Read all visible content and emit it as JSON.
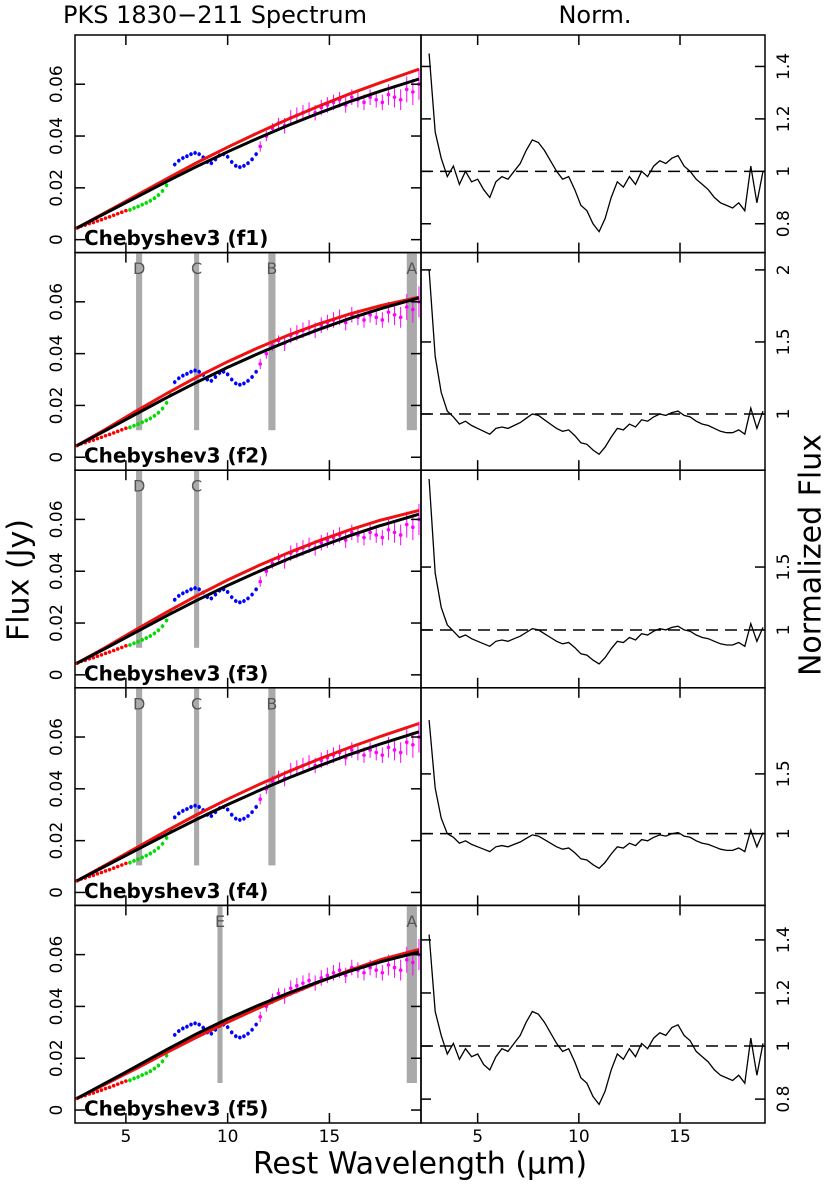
{
  "chart_data": {
    "type": "spectrum-panels",
    "title": "PKS 1830−211 Spectrum",
    "title_right": "Norm.",
    "ylabel": "Flux (Jy)",
    "y2label": "Normalized Flux",
    "xlabel": "Rest Wavelength (μm)",
    "xlim": [
      2.5,
      19.5
    ],
    "x2lim": [
      2.2,
      19.2
    ],
    "xticks": [
      5,
      10,
      15
    ],
    "ylim": [
      -0.005,
      0.079
    ],
    "yticks": [
      0,
      0.02,
      0.04,
      0.06
    ],
    "spectrum": [
      {
        "color": "#ff0000",
        "x": [
          2.6,
          2.8,
          3.0,
          3.2,
          3.4,
          3.6,
          3.8,
          4.0,
          4.2,
          4.4,
          4.6,
          4.8,
          5.0
        ],
        "values": [
          0.0045,
          0.0052,
          0.0056,
          0.0062,
          0.0066,
          0.0072,
          0.0077,
          0.0083,
          0.0088,
          0.0094,
          0.01,
          0.0106,
          0.0112
        ],
        "errors": [
          0.0006,
          0.0006,
          0.0006,
          0.0006,
          0.0006,
          0.0006,
          0.0006,
          0.0006,
          0.0006,
          0.0006,
          0.0006,
          0.0006,
          0.0006
        ]
      },
      {
        "color": "#00dd00",
        "x": [
          5.2,
          5.4,
          5.6,
          5.8,
          6.0,
          6.2,
          6.4,
          6.6,
          6.8,
          7.0,
          7.2
        ],
        "values": [
          0.0115,
          0.0122,
          0.0128,
          0.0135,
          0.0142,
          0.015,
          0.016,
          0.0172,
          0.0188,
          0.021,
          0.024
        ],
        "errors": [
          0.0008,
          0.0008,
          0.0008,
          0.0008,
          0.0008,
          0.0008,
          0.0008,
          0.0008,
          0.0008,
          0.0008,
          0.0008
        ]
      },
      {
        "color": "#0000ff",
        "x": [
          7.4,
          7.6,
          7.8,
          8.0,
          8.2,
          8.4,
          8.6,
          8.8,
          9.0,
          9.2,
          9.4,
          9.6,
          9.8,
          10.0,
          10.2,
          10.4,
          10.6,
          10.8,
          11.0,
          11.2,
          11.4
        ],
        "values": [
          0.029,
          0.0305,
          0.0315,
          0.0322,
          0.033,
          0.0335,
          0.033,
          0.0318,
          0.03,
          0.0295,
          0.031,
          0.0325,
          0.033,
          0.032,
          0.03,
          0.0285,
          0.028,
          0.0285,
          0.0295,
          0.031,
          0.033
        ],
        "errors": [
          0.0008,
          0.0008,
          0.0008,
          0.0008,
          0.0008,
          0.0008,
          0.0008,
          0.0008,
          0.0008,
          0.0008,
          0.0008,
          0.0008,
          0.0008,
          0.0008,
          0.0008,
          0.0008,
          0.0008,
          0.0008,
          0.0008,
          0.0008,
          0.0008
        ]
      },
      {
        "color": "#ff00ff",
        "x": [
          11.6,
          11.9,
          12.2,
          12.5,
          12.8,
          13.1,
          13.4,
          13.7,
          14.0,
          14.3,
          14.6,
          14.9,
          15.2,
          15.5,
          15.8,
          16.1,
          16.4,
          16.7,
          17.0,
          17.3,
          17.6,
          17.9,
          18.2,
          18.5,
          18.8,
          19.1,
          19.4
        ],
        "values": [
          0.036,
          0.04,
          0.043,
          0.045,
          0.044,
          0.047,
          0.048,
          0.049,
          0.05,
          0.049,
          0.051,
          0.052,
          0.053,
          0.054,
          0.052,
          0.055,
          0.054,
          0.053,
          0.055,
          0.054,
          0.053,
          0.056,
          0.055,
          0.054,
          0.058,
          0.057,
          0.06
        ],
        "errors": [
          0.002,
          0.002,
          0.002,
          0.002,
          0.003,
          0.003,
          0.003,
          0.003,
          0.003,
          0.003,
          0.003,
          0.003,
          0.003,
          0.003,
          0.003,
          0.003,
          0.003,
          0.003,
          0.003,
          0.003,
          0.003,
          0.004,
          0.004,
          0.004,
          0.005,
          0.005,
          0.006
        ]
      }
    ],
    "fit_x": [
      2.6,
      4,
      5.5,
      7,
      8.5,
      10,
      11.5,
      13,
      14.5,
      16,
      17.5,
      19.4
    ],
    "norm_x": [
      2.6,
      2.9,
      3.2,
      3.5,
      3.8,
      4.1,
      4.4,
      4.7,
      5.0,
      5.3,
      5.6,
      5.9,
      6.2,
      6.5,
      6.8,
      7.1,
      7.4,
      7.7,
      8.0,
      8.3,
      8.6,
      8.9,
      9.2,
      9.5,
      9.8,
      10.1,
      10.4,
      10.7,
      11.0,
      11.3,
      11.6,
      11.9,
      12.2,
      12.5,
      12.8,
      13.1,
      13.4,
      13.7,
      14.0,
      14.3,
      14.6,
      14.9,
      15.2,
      15.5,
      15.8,
      16.1,
      16.4,
      16.7,
      17.0,
      17.3,
      17.6,
      17.9,
      18.2,
      18.5,
      18.8,
      19.1
    ],
    "rows": [
      {
        "label": "Chebyshev3 (f1)",
        "bands": [],
        "fits": [
          {
            "color": "#ee1111",
            "values": [
              0.0045,
              0.0105,
              0.017,
              0.0235,
              0.0298,
              0.0357,
              0.0413,
              0.0466,
              0.0516,
              0.0563,
              0.0606,
              0.0658
            ]
          },
          {
            "color": "#000000",
            "values": [
              0.0045,
              0.0102,
              0.0163,
              0.0224,
              0.0283,
              0.0339,
              0.0392,
              0.0442,
              0.0489,
              0.0533,
              0.0573,
              0.062
            ]
          }
        ],
        "norm": {
          "ylim": [
            0.69,
            1.52
          ],
          "yticks": [
            0.8,
            1,
            1.2,
            1.4
          ],
          "reference": 1,
          "values": [
            1.45,
            1.15,
            1.05,
            0.98,
            1.02,
            0.95,
            1.0,
            0.96,
            0.97,
            0.93,
            0.9,
            0.96,
            0.98,
            0.97,
            1.0,
            1.03,
            1.08,
            1.12,
            1.11,
            1.08,
            1.04,
            1.0,
            0.97,
            0.98,
            0.93,
            0.87,
            0.85,
            0.8,
            0.77,
            0.82,
            0.9,
            0.96,
            0.94,
            0.98,
            0.95,
            1.0,
            0.98,
            1.02,
            1.04,
            1.03,
            1.05,
            1.06,
            1.02,
            1.0,
            0.97,
            0.95,
            0.93,
            0.9,
            0.88,
            0.87,
            0.86,
            0.88,
            0.85,
            1.02,
            0.88,
            1.0
          ]
        }
      },
      {
        "label": "Chebyshev3 (f2)",
        "bands": [
          {
            "label": "D",
            "xmin": 5.5,
            "xmax": 5.8
          },
          {
            "label": "C",
            "xmin": 8.35,
            "xmax": 8.6
          },
          {
            "label": "B",
            "xmin": 12.0,
            "xmax": 12.35
          },
          {
            "label": "A",
            "xmin": 18.8,
            "xmax": 19.3
          }
        ],
        "fits": [
          {
            "color": "#ee1111",
            "values": [
              0.0045,
              0.0108,
              0.0178,
              0.0246,
              0.031,
              0.0369,
              0.0423,
              0.0472,
              0.0515,
              0.0553,
              0.0585,
              0.0618
            ]
          },
          {
            "color": "#000000",
            "values": [
              0.0045,
              0.0103,
              0.0167,
              0.023,
              0.029,
              0.0347,
              0.04,
              0.0449,
              0.0494,
              0.0536,
              0.0573,
              0.0615
            ]
          }
        ],
        "norm": {
          "ylim": [
            0.61,
            2.12
          ],
          "yticks": [
            1,
            1.5,
            2
          ],
          "reference": 1,
          "values": [
            2.0,
            1.4,
            1.15,
            1.02,
            0.98,
            0.93,
            0.95,
            0.92,
            0.9,
            0.88,
            0.86,
            0.9,
            0.91,
            0.9,
            0.92,
            0.94,
            0.97,
            1.0,
            0.99,
            0.96,
            0.93,
            0.9,
            0.88,
            0.89,
            0.85,
            0.8,
            0.79,
            0.75,
            0.72,
            0.77,
            0.84,
            0.9,
            0.89,
            0.93,
            0.91,
            0.96,
            0.95,
            0.98,
            1.0,
            0.99,
            1.01,
            1.02,
            0.99,
            0.98,
            0.95,
            0.93,
            0.92,
            0.9,
            0.88,
            0.87,
            0.87,
            0.89,
            0.86,
            1.04,
            0.9,
            1.02
          ]
        }
      },
      {
        "label": "Chebyshev3 (f3)",
        "bands": [
          {
            "label": "D",
            "xmin": 5.5,
            "xmax": 5.8
          },
          {
            "label": "C",
            "xmin": 8.35,
            "xmax": 8.6
          }
        ],
        "fits": [
          {
            "color": "#ee1111",
            "values": [
              0.0045,
              0.0106,
              0.0175,
              0.0242,
              0.0306,
              0.0366,
              0.0421,
              0.0472,
              0.0518,
              0.056,
              0.0597,
              0.0635
            ]
          },
          {
            "color": "#000000",
            "values": [
              0.0045,
              0.0102,
              0.0165,
              0.0228,
              0.0288,
              0.0345,
              0.0398,
              0.0448,
              0.0494,
              0.0537,
              0.0576,
              0.062
            ]
          }
        ],
        "norm": {
          "ylim": [
            0.54,
            2.27
          ],
          "yticks": [
            1,
            1.5
          ],
          "reference": 1,
          "values": [
            2.2,
            1.45,
            1.18,
            1.04,
            0.99,
            0.94,
            0.96,
            0.93,
            0.91,
            0.89,
            0.87,
            0.91,
            0.92,
            0.91,
            0.93,
            0.95,
            0.98,
            1.01,
            1.0,
            0.97,
            0.94,
            0.91,
            0.89,
            0.9,
            0.86,
            0.81,
            0.8,
            0.76,
            0.73,
            0.78,
            0.85,
            0.91,
            0.9,
            0.94,
            0.92,
            0.97,
            0.96,
            0.99,
            1.01,
            1.0,
            1.02,
            1.03,
            1.0,
            0.99,
            0.96,
            0.94,
            0.93,
            0.91,
            0.89,
            0.88,
            0.88,
            0.9,
            0.87,
            1.05,
            0.91,
            1.02
          ]
        }
      },
      {
        "label": "Chebyshev3 (f4)",
        "bands": [
          {
            "label": "D",
            "xmin": 5.5,
            "xmax": 5.8
          },
          {
            "label": "C",
            "xmin": 8.35,
            "xmax": 8.6
          },
          {
            "label": "B",
            "xmin": 12.0,
            "xmax": 12.35
          }
        ],
        "fits": [
          {
            "color": "#ee1111",
            "values": [
              0.0045,
              0.0106,
              0.0172,
              0.0238,
              0.0301,
              0.036,
              0.0415,
              0.0467,
              0.0515,
              0.056,
              0.0602,
              0.0652
            ]
          },
          {
            "color": "#000000",
            "values": [
              0.0045,
              0.0102,
              0.0163,
              0.0224,
              0.0283,
              0.0339,
              0.0392,
              0.0442,
              0.0489,
              0.0533,
              0.0573,
              0.062
            ]
          }
        ],
        "norm": {
          "ylim": [
            0.4,
            2.22
          ],
          "yticks": [
            1,
            1.5
          ],
          "reference": 1,
          "values": [
            1.95,
            1.38,
            1.13,
            1.0,
            0.97,
            0.92,
            0.94,
            0.91,
            0.89,
            0.87,
            0.85,
            0.89,
            0.9,
            0.89,
            0.91,
            0.93,
            0.96,
            0.99,
            0.98,
            0.95,
            0.92,
            0.89,
            0.87,
            0.88,
            0.84,
            0.79,
            0.78,
            0.74,
            0.71,
            0.76,
            0.83,
            0.89,
            0.88,
            0.92,
            0.9,
            0.95,
            0.94,
            0.97,
            0.99,
            0.98,
            1.0,
            1.01,
            0.98,
            0.97,
            0.94,
            0.92,
            0.91,
            0.89,
            0.87,
            0.86,
            0.86,
            0.88,
            0.85,
            1.03,
            0.89,
            1.01
          ]
        }
      },
      {
        "label": "Chebyshev3 (f5)",
        "bands": [
          {
            "label": "E",
            "xmin": 9.5,
            "xmax": 9.75
          },
          {
            "label": "A",
            "xmin": 18.8,
            "xmax": 19.3
          }
        ],
        "fits": [
          {
            "color": "#ee1111",
            "values": [
              0.0045,
              0.01,
              0.016,
              0.0222,
              0.0282,
              0.0339,
              0.0393,
              0.0445,
              0.0494,
              0.054,
              0.058,
              0.062
            ]
          },
          {
            "color": "#000000",
            "values": [
              0.0045,
              0.0104,
              0.0168,
              0.0233,
              0.0295,
              0.0352,
              0.0404,
              0.0452,
              0.0496,
              0.0536,
              0.0572,
              0.061
            ]
          }
        ],
        "norm": {
          "ylim": [
            0.71,
            1.53
          ],
          "yticks": [
            0.8,
            1,
            1.2,
            1.4
          ],
          "reference": 1,
          "values": [
            1.42,
            1.13,
            1.04,
            0.97,
            1.01,
            0.95,
            0.99,
            0.96,
            0.97,
            0.93,
            0.91,
            0.96,
            0.99,
            0.98,
            1.01,
            1.04,
            1.09,
            1.13,
            1.12,
            1.09,
            1.05,
            1.01,
            0.98,
            0.99,
            0.94,
            0.88,
            0.86,
            0.81,
            0.78,
            0.83,
            0.91,
            0.97,
            0.95,
            0.99,
            0.96,
            1.01,
            0.99,
            1.03,
            1.05,
            1.04,
            1.07,
            1.08,
            1.04,
            1.02,
            0.98,
            0.96,
            0.94,
            0.91,
            0.89,
            0.88,
            0.87,
            0.89,
            0.86,
            1.03,
            0.89,
            1.01
          ]
        }
      }
    ]
  }
}
